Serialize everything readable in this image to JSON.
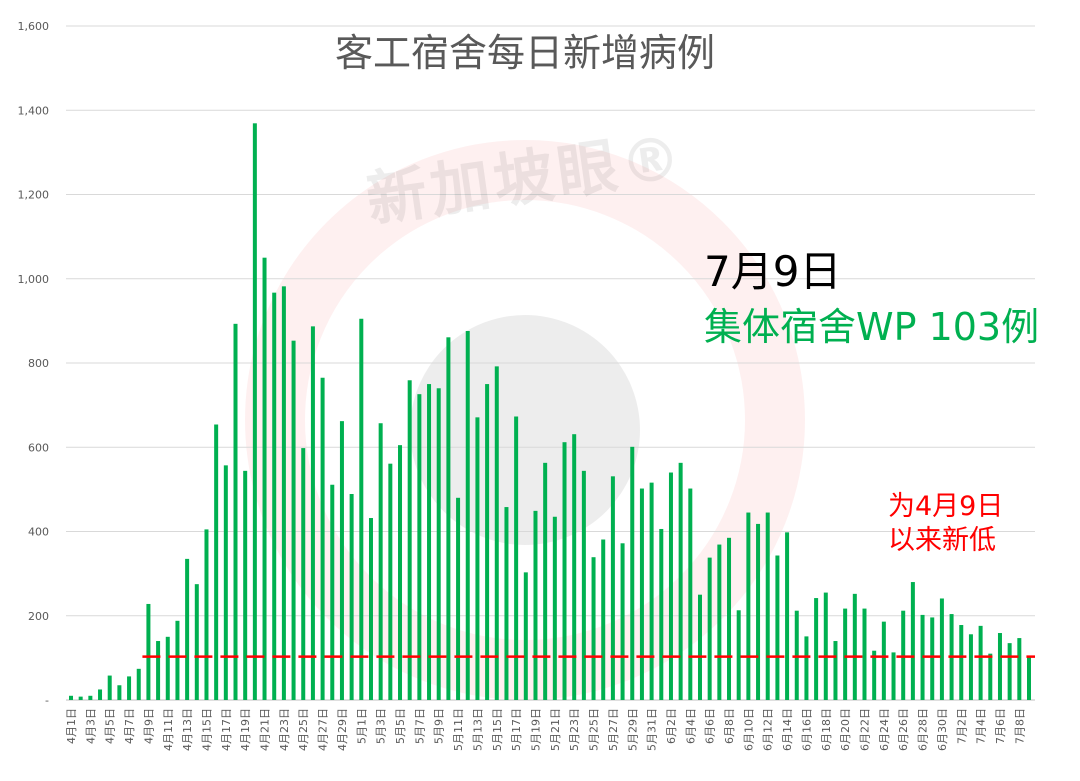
{
  "watermark": "新加坡眼®",
  "chart_data": {
    "type": "bar",
    "title": "客工宿舍每日新增病例",
    "ylim": [
      0,
      1600
    ],
    "yticks": [
      0,
      200,
      400,
      600,
      800,
      1000,
      1200,
      1400,
      1600
    ],
    "ytick_labels": [
      "-",
      "200",
      "400",
      "600",
      "800",
      "1,000",
      "1,200",
      "1,400",
      "1,600"
    ],
    "grid": true,
    "bar_color": "#00b050",
    "reference_line": {
      "value": 103,
      "color": "#ff0000",
      "style": "dashed",
      "from": "4月9日"
    },
    "categories": [
      "4月1日",
      "4月2日",
      "4月3日",
      "4月4日",
      "4月5日",
      "4月6日",
      "4月7日",
      "4月8日",
      "4月9日",
      "4月10日",
      "4月11日",
      "4月12日",
      "4月13日",
      "4月14日",
      "4月15日",
      "4月16日",
      "4月17日",
      "4月18日",
      "4月19日",
      "4月20日",
      "4月21日",
      "4月22日",
      "4月23日",
      "4月24日",
      "4月25日",
      "4月26日",
      "4月27日",
      "4月28日",
      "4月29日",
      "4月30日",
      "5月1日",
      "5月2日",
      "5月3日",
      "5月4日",
      "5月5日",
      "5月6日",
      "5月7日",
      "5月8日",
      "5月9日",
      "5月10日",
      "5月11日",
      "5月12日",
      "5月13日",
      "5月14日",
      "5月15日",
      "5月16日",
      "5月17日",
      "5月18日",
      "5月19日",
      "5月20日",
      "5月21日",
      "5月22日",
      "5月23日",
      "5月24日",
      "5月25日",
      "5月26日",
      "5月27日",
      "5月28日",
      "5月29日",
      "5月30日",
      "5月31日",
      "6月1日",
      "6月2日",
      "6月3日",
      "6月4日",
      "6月5日",
      "6月6日",
      "6月7日",
      "6月8日",
      "6月9日",
      "6月10日",
      "6月11日",
      "6月12日",
      "6月13日",
      "6月14日",
      "6月15日",
      "6月16日",
      "6月17日",
      "6月18日",
      "6月19日",
      "6月20日",
      "6月21日",
      "6月22日",
      "6月23日",
      "6月24日",
      "6月25日",
      "6月26日",
      "6月27日",
      "6月28日",
      "6月29日",
      "6月30日",
      "7月1日",
      "7月2日",
      "7月3日",
      "7月4日",
      "7月5日",
      "7月6日",
      "7月7日",
      "7月8日",
      "7月9日"
    ],
    "values": [
      10,
      8,
      10,
      25,
      58,
      35,
      56,
      74,
      228,
      140,
      150,
      188,
      335,
      275,
      405,
      654,
      557,
      893,
      544,
      1369,
      1050,
      967,
      982,
      853,
      598,
      887,
      765,
      511,
      662,
      489,
      905,
      432,
      657,
      561,
      605,
      759,
      726,
      750,
      740,
      861,
      480,
      876,
      671,
      750,
      792,
      458,
      673,
      303,
      449,
      563,
      435,
      612,
      631,
      544,
      339,
      381,
      531,
      372,
      601,
      502,
      516,
      406,
      540,
      563,
      502,
      250,
      338,
      369,
      385,
      213,
      445,
      418,
      445,
      343,
      398,
      212,
      151,
      242,
      255,
      140,
      217,
      252,
      217,
      117,
      186,
      113,
      212,
      280,
      202,
      196,
      241,
      204,
      178,
      156,
      176,
      110,
      159,
      135,
      147,
      103
    ],
    "annotations": {
      "date": "7月9日",
      "headline": "集体宿舍WP 103例",
      "note_line1": "为4月9日",
      "note_line2": "以来新低"
    },
    "colors": {
      "headline": "#00b050",
      "note": "#ff0000"
    }
  }
}
